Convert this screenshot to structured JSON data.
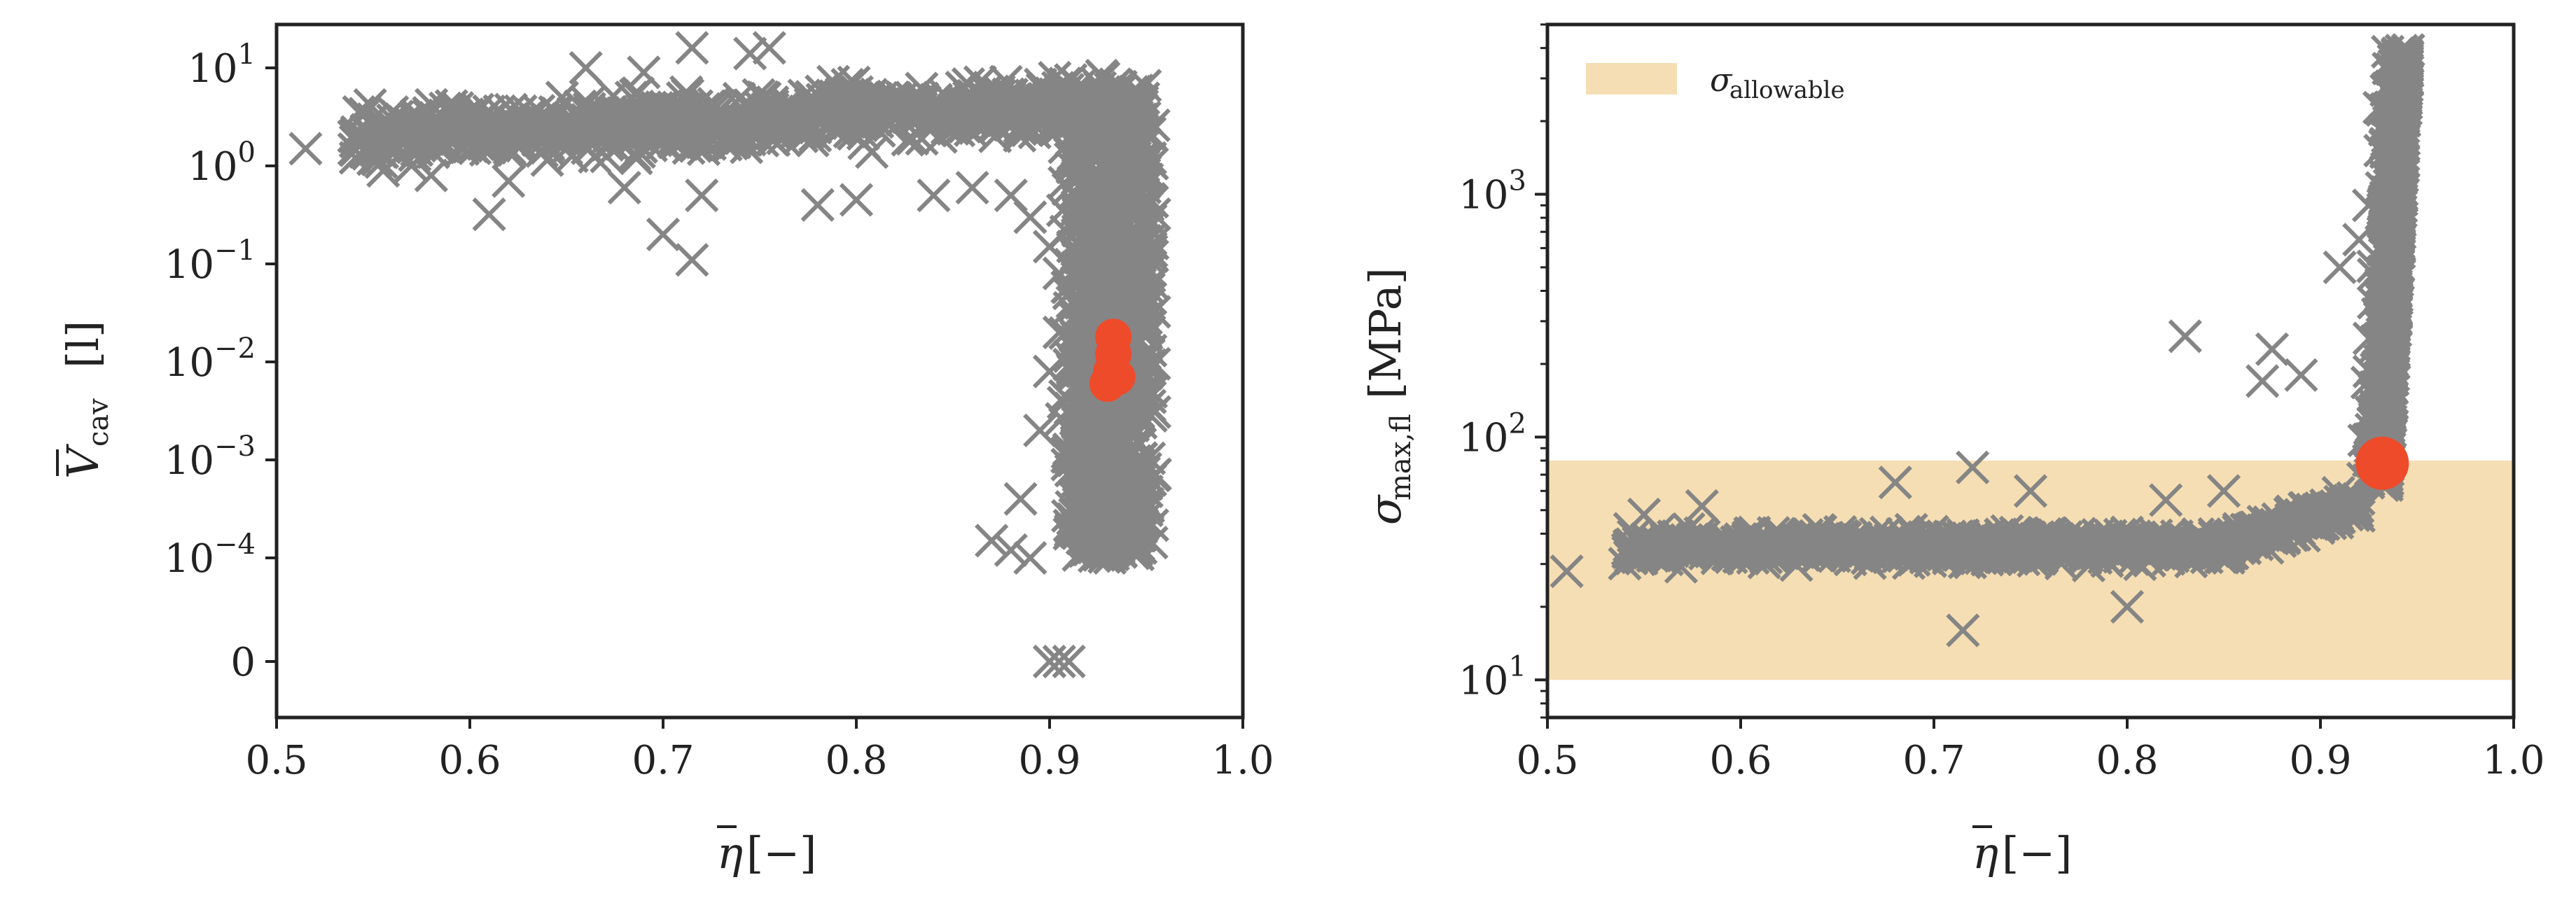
{
  "colors": {
    "scatter": "#858585",
    "highlight": "#EE4B2B",
    "band": "#F5DEB3",
    "axis": "#222222"
  },
  "chart_data": [
    {
      "type": "scatter",
      "panel": "left",
      "xlabel": {
        "symbol": "η",
        "unit": "[−]"
      },
      "ylabel": {
        "symbol": "V",
        "sub": "cav",
        "unit": "[l]"
      },
      "xlim": [
        0.5,
        1.0
      ],
      "ylim_scale": "symlog",
      "xticks": [
        "0.5",
        "0.6",
        "0.7",
        "0.8",
        "0.9",
        "1.0"
      ],
      "yticks": [
        {
          "base": "10",
          "exp": "1"
        },
        {
          "base": "10",
          "exp": "0"
        },
        {
          "base": "10",
          "exp": "−1"
        },
        {
          "base": "10",
          "exp": "−2"
        },
        {
          "base": "10",
          "exp": "−3"
        },
        {
          "base": "10",
          "exp": "−4"
        },
        {
          "base": "0",
          "exp": ""
        }
      ],
      "series": [
        {
          "marker": "x",
          "points": [
            [
              0.515,
              1.5
            ],
            [
              0.61,
              0.32
            ],
            [
              0.7,
              0.2
            ],
            [
              0.715,
              0.11
            ],
            [
              0.9,
              0
            ],
            [
              0.91,
              0
            ],
            [
              0.905,
              0
            ],
            [
              0.87,
              0.00015
            ],
            [
              0.88,
              0.00012
            ],
            [
              0.89,
              0.0001
            ],
            [
              0.885,
              0.0004
            ],
            [
              0.895,
              0.002
            ],
            [
              0.9,
              0.008
            ],
            [
              0.905,
              0.02
            ],
            [
              0.91,
              0.05
            ],
            [
              0.715,
              16
            ],
            [
              0.755,
              16
            ],
            [
              0.745,
              14
            ],
            [
              0.69,
              9
            ],
            [
              0.66,
              10
            ],
            [
              0.55,
              3
            ],
            [
              0.57,
              2.5
            ],
            [
              0.6,
              2
            ],
            [
              0.63,
              2
            ],
            [
              0.65,
              1.5
            ],
            [
              0.58,
              0.8
            ],
            [
              0.62,
              0.7
            ],
            [
              0.68,
              0.6
            ],
            [
              0.72,
              0.5
            ],
            [
              0.78,
              0.4
            ],
            [
              0.8,
              0.45
            ],
            [
              0.84,
              0.5
            ],
            [
              0.86,
              0.6
            ],
            [
              0.88,
              0.5
            ],
            [
              0.89,
              0.3
            ],
            [
              0.9,
              0.15
            ],
            [
              0.905,
              0.08
            ]
          ]
        },
        {
          "marker": "circle",
          "points": [
            [
              0.933,
              0.018
            ],
            [
              0.933,
              0.012
            ],
            [
              0.932,
              0.008
            ],
            [
              0.93,
              0.006
            ],
            [
              0.935,
              0.007
            ]
          ]
        }
      ]
    },
    {
      "type": "scatter",
      "panel": "right",
      "xlabel": {
        "symbol": "η",
        "unit": "[−]"
      },
      "ylabel": {
        "symbol": "σ",
        "sub": "max,fl",
        "unit": "[MPa]"
      },
      "xlim": [
        0.5,
        1.0
      ],
      "ylim": [
        7,
        5000
      ],
      "yscale": "log",
      "xticks": [
        "0.5",
        "0.6",
        "0.7",
        "0.8",
        "0.9",
        "1.0"
      ],
      "yticks": [
        {
          "base": "10",
          "exp": "1"
        },
        {
          "base": "10",
          "exp": "2"
        },
        {
          "base": "10",
          "exp": "3"
        }
      ],
      "legend": {
        "symbol": "σ",
        "sub": "allowable",
        "placement": "top-left"
      },
      "band": [
        10,
        80
      ],
      "series": [
        {
          "marker": "x",
          "points": [
            [
              0.51,
              28
            ],
            [
              0.55,
              48
            ],
            [
              0.58,
              52
            ],
            [
              0.715,
              16
            ],
            [
              0.83,
              260
            ],
            [
              0.87,
              170
            ],
            [
              0.875,
              230
            ],
            [
              0.89,
              180
            ],
            [
              0.92,
              650
            ],
            [
              0.91,
              500
            ],
            [
              0.925,
              900
            ],
            [
              0.94,
              3800
            ],
            [
              0.945,
              3500
            ],
            [
              0.62,
              40
            ],
            [
              0.68,
              65
            ],
            [
              0.72,
              75
            ],
            [
              0.75,
              60
            ],
            [
              0.8,
              20
            ],
            [
              0.82,
              55
            ],
            [
              0.85,
              60
            ]
          ]
        },
        {
          "marker": "circle",
          "points": [
            [
              0.932,
              78
            ]
          ]
        }
      ]
    }
  ]
}
